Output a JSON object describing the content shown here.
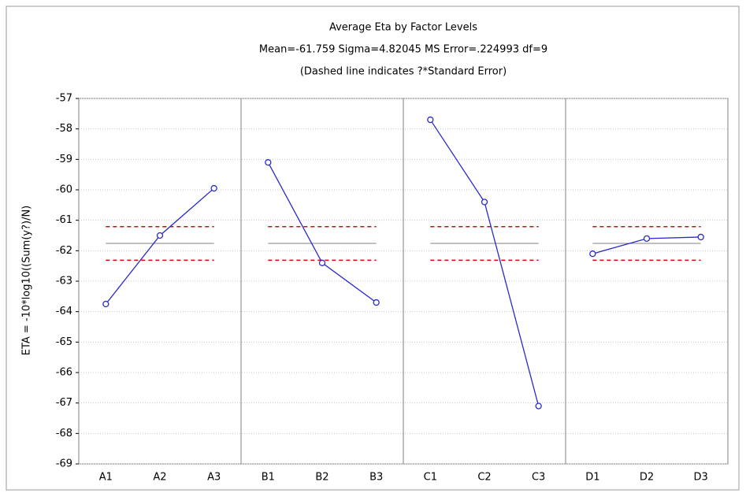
{
  "chart_data": {
    "type": "line",
    "title": "Average Eta by Factor Levels",
    "subtitle": "Mean=-61.759 Sigma=4.82045 MS Error=.224993 df=9",
    "note": "(Dashed line indicates ?*Standard Error)",
    "ylabel": "ETA = -10*log10((Sum(y?)/N)",
    "color": "#2a2ac8",
    "mean": -61.759,
    "limits": [
      -61.21,
      -62.31
    ],
    "panels": [
      {
        "categories": [
          "A1",
          "A2",
          "A3"
        ],
        "values": [
          -63.75,
          -61.5,
          -59.95
        ]
      },
      {
        "categories": [
          "B1",
          "B2",
          "B3"
        ],
        "values": [
          -59.1,
          -62.4,
          -63.7
        ]
      },
      {
        "categories": [
          "C1",
          "C2",
          "C3"
        ],
        "values": [
          -57.7,
          -60.4,
          -67.1
        ]
      },
      {
        "categories": [
          "D1",
          "D2",
          "D3"
        ],
        "values": [
          -62.1,
          -61.6,
          -61.55
        ]
      }
    ],
    "ylim": [
      -69,
      -57
    ],
    "yticks": [
      -57,
      -58,
      -59,
      -60,
      -61,
      -62,
      -63,
      -64,
      -65,
      -66,
      -67,
      -68,
      -69
    ],
    "grid": true
  }
}
